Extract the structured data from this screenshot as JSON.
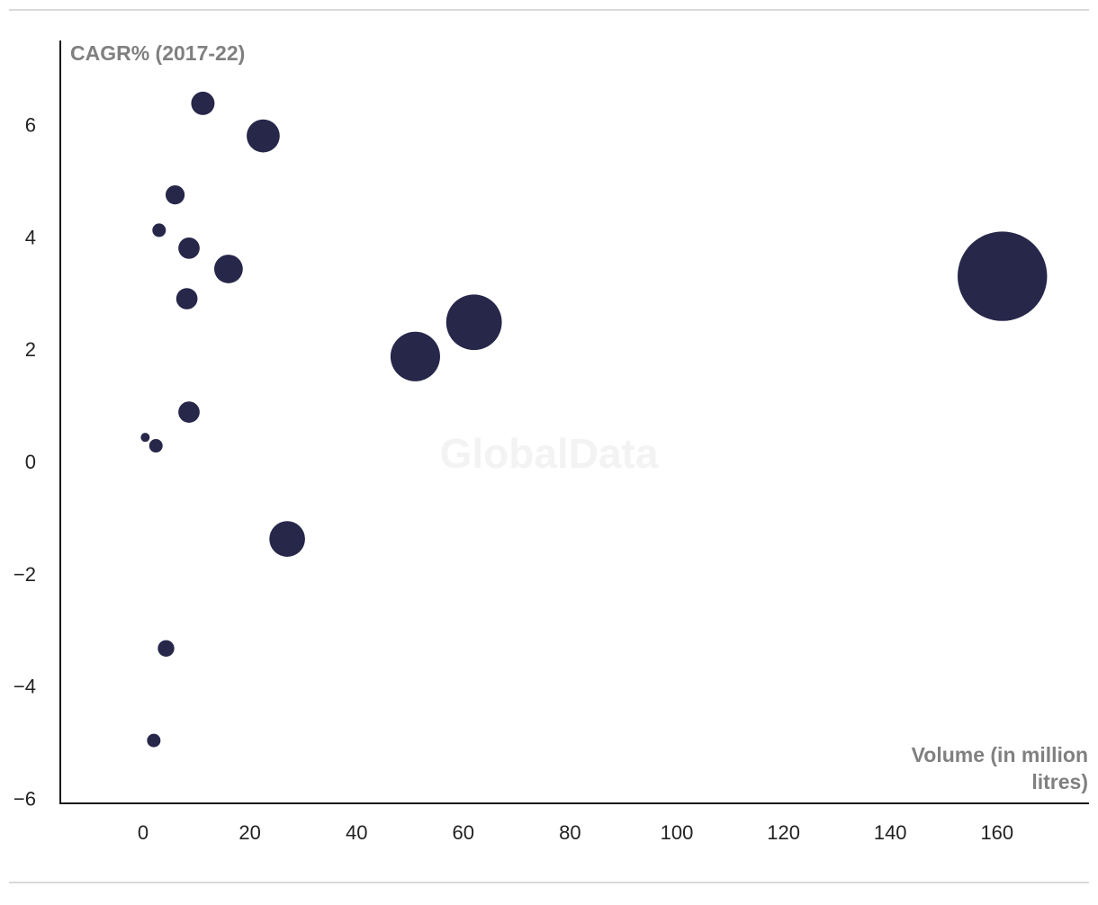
{
  "chart_data": {
    "type": "scatter",
    "encoding": "bubble",
    "xlabel_lines": [
      "Volume (in million",
      "litres)"
    ],
    "ylabel": "CAGR% (2017-22)",
    "xlim": [
      -15,
      178
    ],
    "ylim": [
      -6.1,
      7.5
    ],
    "x_ticks": [
      0,
      20,
      40,
      60,
      80,
      100,
      120,
      140,
      160
    ],
    "y_ticks": [
      6,
      4,
      2,
      0,
      -2,
      -4,
      -6
    ],
    "watermark": "GlobalData",
    "colors": {
      "bubble": "#262749"
    },
    "points": [
      {
        "x": 11.2,
        "y": 6.38,
        "size": 6
      },
      {
        "x": 22.5,
        "y": 5.8,
        "size": 12
      },
      {
        "x": 6.0,
        "y": 4.75,
        "size": 4
      },
      {
        "x": 3.0,
        "y": 4.12,
        "size": 2
      },
      {
        "x": 8.6,
        "y": 3.8,
        "size": 5
      },
      {
        "x": 16.0,
        "y": 3.43,
        "size": 9
      },
      {
        "x": 8.2,
        "y": 2.9,
        "size": 5
      },
      {
        "x": 62.0,
        "y": 2.48,
        "size": 34
      },
      {
        "x": 51.0,
        "y": 1.87,
        "size": 27
      },
      {
        "x": 161.0,
        "y": 3.3,
        "size": 88
      },
      {
        "x": 8.6,
        "y": 0.88,
        "size": 5
      },
      {
        "x": 0.4,
        "y": 0.43,
        "size": 0.8
      },
      {
        "x": 2.4,
        "y": 0.28,
        "size": 2
      },
      {
        "x": 27.0,
        "y": -1.38,
        "size": 14
      },
      {
        "x": 4.3,
        "y": -3.33,
        "size": 3
      },
      {
        "x": 2.0,
        "y": -4.97,
        "size": 2
      }
    ]
  }
}
